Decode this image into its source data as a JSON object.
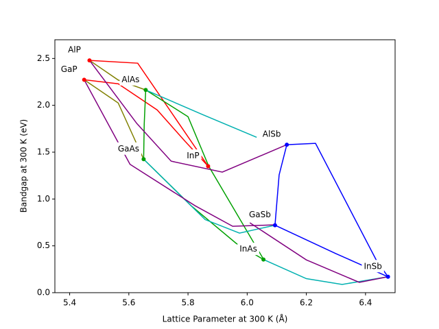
{
  "chart_data": {
    "type": "line",
    "xlabel": "Lattice Parameter at 300 K (Å)",
    "ylabel": "Bandgap at 300 K (eV)",
    "xlim": [
      5.35,
      6.5
    ],
    "ylim": [
      0,
      2.7
    ],
    "xticks": [
      5.4,
      5.6,
      5.8,
      {
        "value": 6,
        "label": "6.0"
      },
      6.2,
      6.4
    ],
    "yticks": [
      {
        "value": 0,
        "label": "0.0"
      },
      0.5,
      {
        "value": 1,
        "label": "1.0"
      },
      1.5,
      {
        "value": 2,
        "label": "2.0"
      },
      2.5
    ],
    "series": [
      {
        "color": "#ff0000",
        "x": [
          5.467,
          5.63,
          5.868
        ],
        "values": [
          2.48,
          2.45,
          1.35
        ]
      },
      {
        "color": "#ff0000",
        "x": [
          5.449,
          5.564,
          5.696,
          5.789,
          5.868
        ],
        "values": [
          2.273,
          2.23,
          1.95,
          1.62,
          1.35
        ]
      },
      {
        "color": "#808000",
        "x": [
          5.467,
          5.564,
          5.657
        ],
        "values": [
          2.48,
          2.27,
          2.164
        ]
      },
      {
        "color": "#808000",
        "x": [
          5.449,
          5.564,
          5.65
        ],
        "values": [
          2.273,
          2.025,
          1.425
        ]
      },
      {
        "color": "#00a000",
        "x": [
          5.657,
          5.652,
          5.65
        ],
        "values": [
          2.164,
          1.8,
          1.425
        ]
      },
      {
        "color": "#00a000",
        "x": [
          5.657,
          5.8,
          5.87,
          6.055
        ],
        "values": [
          2.164,
          1.879,
          1.35,
          0.358
        ]
      },
      {
        "color": "#00a000",
        "x": [
          5.65,
          5.81,
          5.963,
          6.055
        ],
        "values": [
          1.425,
          0.93,
          0.526,
          0.354
        ]
      },
      {
        "color": "#00b0b0",
        "x": [
          5.657,
          5.85,
          6.032
        ],
        "values": [
          2.164,
          1.9,
          1.659
        ]
      },
      {
        "color": "#00b0b0",
        "x": [
          5.65,
          5.858,
          5.974,
          6.094
        ],
        "values": [
          1.425,
          0.78,
          0.636,
          0.72
        ]
      },
      {
        "color": "#00b0b0",
        "x": [
          6.055,
          6.2,
          6.321,
          6.476
        ],
        "values": [
          0.354,
          0.15,
          0.088,
          0.17
        ]
      },
      {
        "color": "#800080",
        "x": [
          5.467,
          5.627,
          5.743,
          5.916,
          6.134
        ],
        "values": [
          2.48,
          1.806,
          1.404,
          1.287,
          1.58
        ]
      },
      {
        "color": "#800080",
        "x": [
          5.449,
          5.604,
          5.824,
          5.951,
          6.094
        ],
        "values": [
          2.273,
          1.37,
          0.928,
          0.709,
          0.724
        ]
      },
      {
        "color": "#800080",
        "x": [
          6.009,
          6.2,
          6.379,
          6.476
        ],
        "values": [
          0.746,
          0.35,
          0.11,
          0.17
        ]
      },
      {
        "color": "#0000ff",
        "x": [
          6.134,
          6.108,
          6.094
        ],
        "values": [
          1.58,
          1.257,
          0.72
        ]
      },
      {
        "color": "#0000ff",
        "x": [
          6.134,
          6.231,
          6.437,
          6.476
        ],
        "values": [
          1.58,
          1.594,
          0.344,
          0.17
        ]
      },
      {
        "color": "#0000ff",
        "x": [
          6.094,
          6.3,
          6.476
        ],
        "values": [
          0.72,
          0.417,
          0.17
        ]
      }
    ],
    "points": {
      "labels": [
        "AlP",
        "GaP",
        "AlAs",
        "GaAs",
        "InP",
        "AlSb",
        "GaSb",
        "InAs",
        "InSb"
      ],
      "x": [
        5.467,
        5.449,
        5.657,
        5.65,
        5.868,
        6.134,
        6.094,
        6.055,
        6.476
      ],
      "values": [
        2.48,
        2.273,
        2.164,
        1.425,
        1.35,
        1.58,
        0.72,
        0.354,
        0.17
      ],
      "colors": [
        "#ff0000",
        "#ff0000",
        "#00a000",
        "#00a000",
        "#ff0000",
        "#0000ff",
        "#0000ff",
        "#00a000",
        "#0000ff"
      ]
    }
  }
}
